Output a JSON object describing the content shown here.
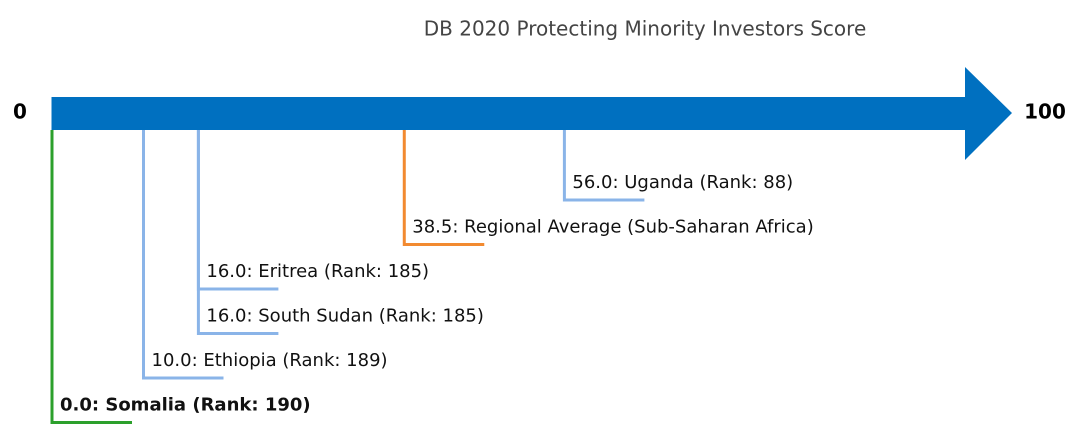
{
  "chart_data": {
    "type": "number_line",
    "title": "DB 2020 Protecting Minority Investors Score",
    "xlim": [
      0,
      100
    ],
    "xticks": [
      0,
      100
    ],
    "axis_color": "#0070c0",
    "markers": [
      {
        "value": 56,
        "label": "56.0: Uganda (Rank: 88)",
        "color": "#8ab4e8"
      },
      {
        "value": 38.5,
        "label": "38.5: Regional Average (Sub-Saharan Africa)",
        "color": "#f28a30"
      },
      {
        "value": 16,
        "label": "16.0: Eritrea (Rank: 185)",
        "color": "#8ab4e8"
      },
      {
        "value": 16,
        "label": "16.0: South Sudan (Rank: 185)",
        "color": "#8ab4e8"
      },
      {
        "value": 10,
        "label": "10.0: Ethiopia (Rank: 189)",
        "color": "#8ab4e8"
      },
      {
        "value": 0,
        "label": "0.0: Somalia (Rank: 190)",
        "color": "#2ca02c",
        "bold": true
      }
    ]
  }
}
